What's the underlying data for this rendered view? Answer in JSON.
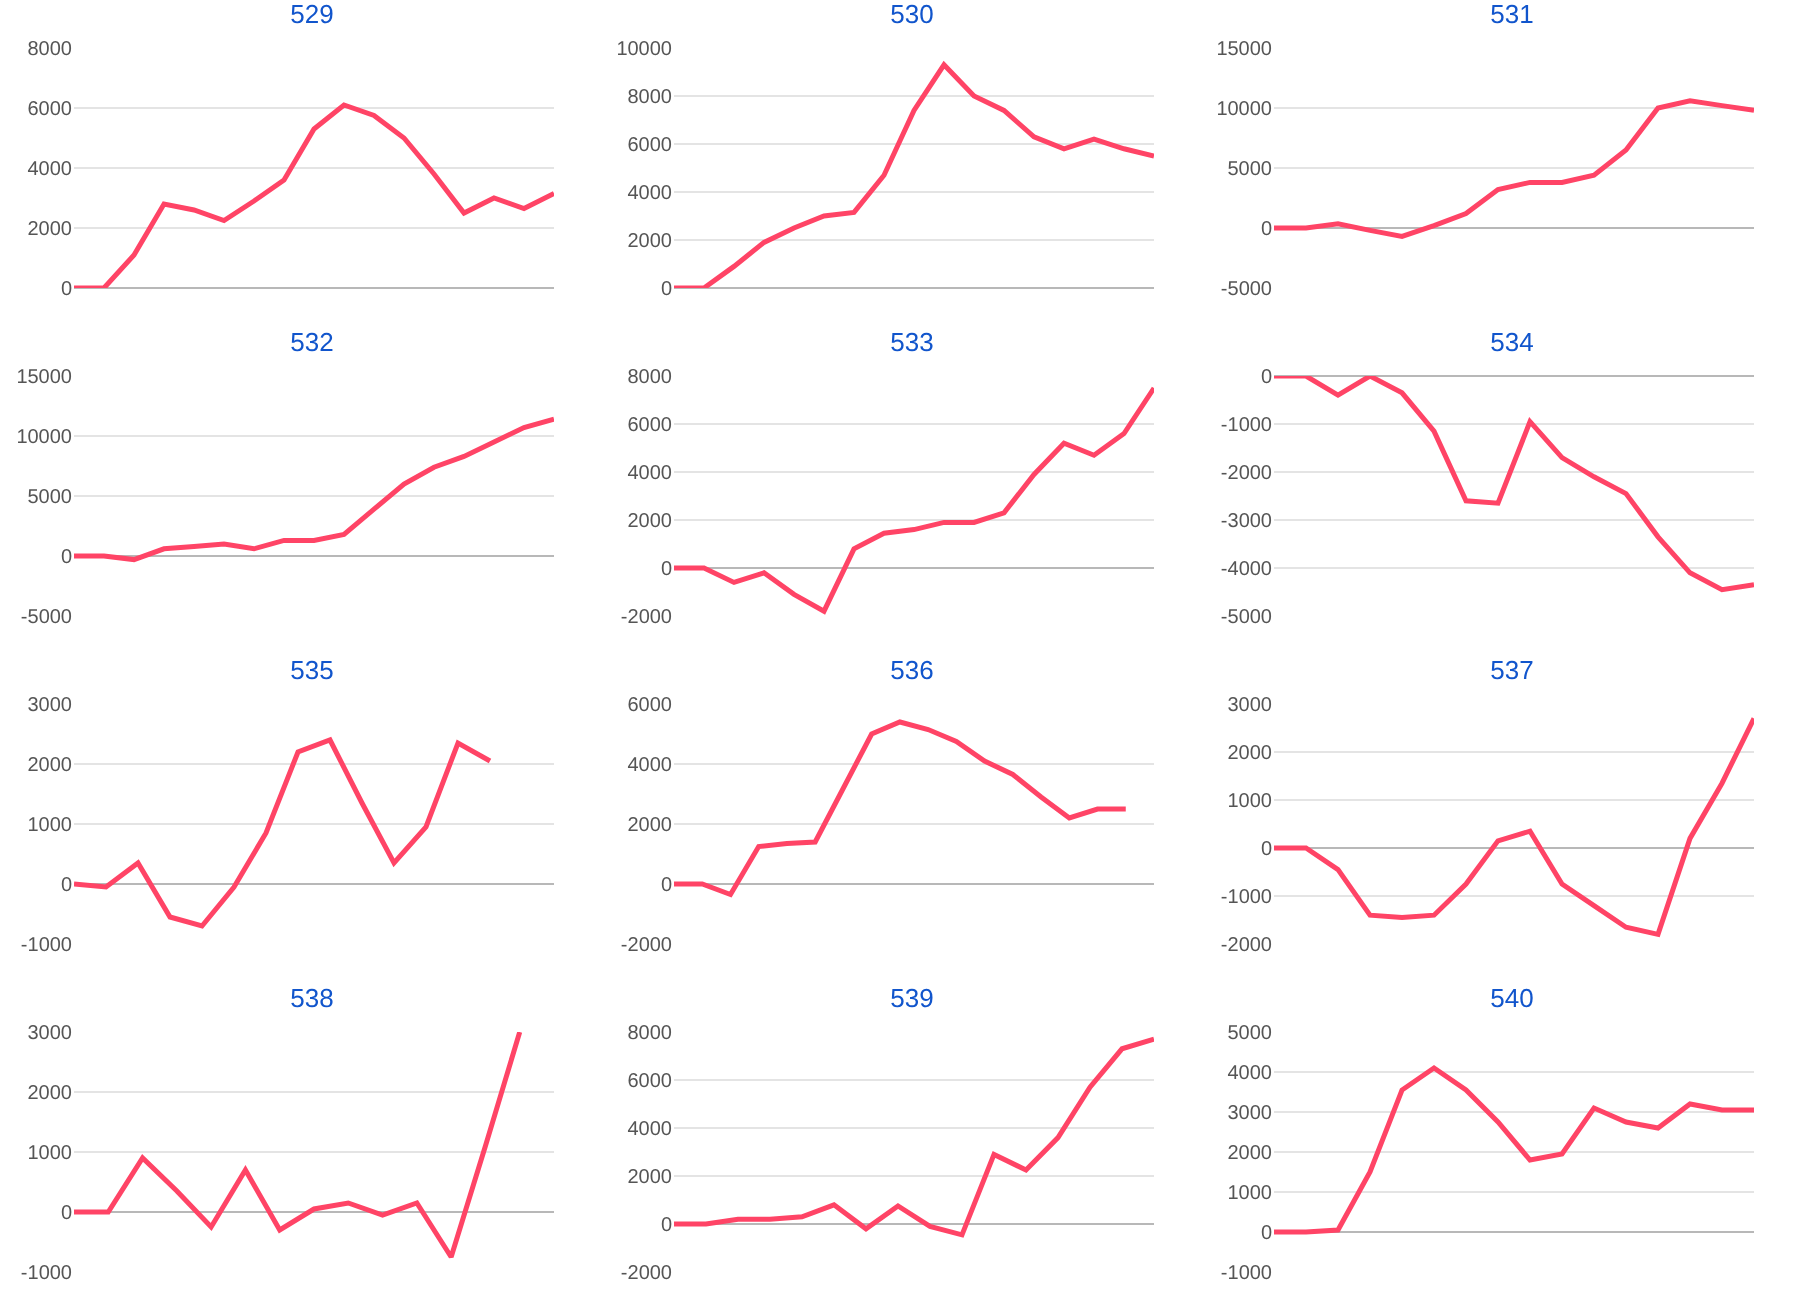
{
  "chart_data": [
    {
      "type": "line",
      "title": "529",
      "categories": [
        null,
        null,
        null,
        null,
        null,
        null,
        null,
        null,
        null,
        null,
        null,
        null,
        null,
        null,
        null,
        null,
        null
      ],
      "values": [
        0,
        0,
        1100,
        2800,
        2600,
        2250,
        2900,
        3600,
        5300,
        6100,
        5750,
        5000,
        3800,
        2500,
        3000,
        2650,
        3150
      ],
      "color": "#ff4466",
      "ylim": [
        0,
        8000
      ],
      "yticks": [
        0,
        2000,
        4000,
        6000,
        8000
      ],
      "grid": "y"
    },
    {
      "type": "line",
      "title": "530",
      "categories": [
        null,
        null,
        null,
        null,
        null,
        null,
        null,
        null,
        null,
        null,
        null,
        null,
        null,
        null,
        null,
        null,
        null
      ],
      "values": [
        0,
        0,
        900,
        1900,
        2500,
        3000,
        3150,
        4700,
        7400,
        9300,
        8000,
        7400,
        6300,
        5800,
        6200,
        5800,
        5500
      ],
      "color": "#ff4466",
      "ylim": [
        0,
        10000
      ],
      "yticks": [
        0,
        2000,
        4000,
        6000,
        8000,
        10000
      ],
      "grid": "y"
    },
    {
      "type": "line",
      "title": "531",
      "categories": [
        null,
        null,
        null,
        null,
        null,
        null,
        null,
        null,
        null,
        null,
        null,
        null,
        null,
        null,
        null,
        null
      ],
      "values": [
        0,
        0,
        350,
        -200,
        -700,
        200,
        1200,
        3200,
        3800,
        3800,
        4400,
        6500,
        10000,
        10600,
        10200,
        9800
      ],
      "color": "#ff4466",
      "ylim": [
        -5000,
        15000
      ],
      "yticks": [
        -5000,
        0,
        5000,
        10000,
        15000
      ],
      "grid": "y"
    },
    {
      "type": "line",
      "title": "532",
      "categories": [
        null,
        null,
        null,
        null,
        null,
        null,
        null,
        null,
        null,
        null,
        null,
        null,
        null,
        null,
        null,
        null,
        null
      ],
      "values": [
        0,
        0,
        -300,
        600,
        800,
        1000,
        600,
        1300,
        1300,
        1800,
        3900,
        6000,
        7400,
        8300,
        9500,
        10700,
        11400
      ],
      "color": "#ff4466",
      "ylim": [
        -5000,
        15000
      ],
      "yticks": [
        -5000,
        0,
        5000,
        10000,
        15000
      ],
      "grid": "y"
    },
    {
      "type": "line",
      "title": "533",
      "categories": [
        null,
        null,
        null,
        null,
        null,
        null,
        null,
        null,
        null,
        null,
        null,
        null,
        null,
        null,
        null,
        null,
        null
      ],
      "values": [
        0,
        0,
        -600,
        -200,
        -1100,
        -1800,
        800,
        1450,
        1600,
        1900,
        1900,
        2300,
        3900,
        5200,
        4700,
        5600,
        7500
      ],
      "color": "#ff4466",
      "ylim": [
        -2000,
        8000
      ],
      "yticks": [
        -2000,
        0,
        2000,
        4000,
        6000,
        8000
      ],
      "grid": "y"
    },
    {
      "type": "line",
      "title": "534",
      "categories": [
        null,
        null,
        null,
        null,
        null,
        null,
        null,
        null,
        null,
        null,
        null,
        null,
        null,
        null,
        null,
        null
      ],
      "values": [
        0,
        0,
        -400,
        0,
        -350,
        -1150,
        -2600,
        -2650,
        -950,
        -1700,
        -2100,
        -2450,
        -3350,
        -4100,
        -4450,
        -4350
      ],
      "color": "#ff4466",
      "ylim": [
        -5000,
        0
      ],
      "yticks": [
        -5000,
        -4000,
        -3000,
        -2000,
        -1000,
        0
      ],
      "grid": "y"
    },
    {
      "type": "line",
      "title": "535",
      "categories": [
        null,
        null,
        null,
        null,
        null,
        null,
        null,
        null,
        null,
        null,
        null,
        null,
        null,
        null,
        null,
        null
      ],
      "values": [
        0,
        -50,
        350,
        -550,
        -700,
        -50,
        850,
        2200,
        2400,
        1350,
        350,
        950,
        2350,
        2050,
        null,
        null
      ],
      "color": "#ff4466",
      "ylim": [
        -1000,
        3000
      ],
      "yticks": [
        -1000,
        0,
        1000,
        2000,
        3000
      ],
      "grid": "y"
    },
    {
      "type": "line",
      "title": "536",
      "categories": [
        null,
        null,
        null,
        null,
        null,
        null,
        null,
        null,
        null,
        null,
        null,
        null,
        null,
        null,
        null,
        null,
        null,
        null
      ],
      "values": [
        0,
        0,
        -350,
        1250,
        1350,
        1400,
        3200,
        5000,
        5400,
        5150,
        4750,
        4100,
        3650,
        2900,
        2200,
        2500,
        2500,
        null
      ],
      "color": "#ff4466",
      "ylim": [
        -2000,
        6000
      ],
      "yticks": [
        -2000,
        0,
        2000,
        4000,
        6000
      ],
      "grid": "y"
    },
    {
      "type": "line",
      "title": "537",
      "categories": [
        null,
        null,
        null,
        null,
        null,
        null,
        null,
        null,
        null,
        null,
        null,
        null,
        null,
        null,
        null,
        null
      ],
      "values": [
        0,
        0,
        -450,
        -1400,
        -1450,
        -1400,
        -750,
        150,
        350,
        -750,
        -1200,
        -1650,
        -1800,
        200,
        1350,
        2700
      ],
      "color": "#ff4466",
      "ylim": [
        -2000,
        3000
      ],
      "yticks": [
        -2000,
        -1000,
        0,
        1000,
        2000,
        3000
      ],
      "grid": "y"
    },
    {
      "type": "line",
      "title": "538",
      "categories": [
        null,
        null,
        null,
        null,
        null,
        null,
        null,
        null,
        null,
        null,
        null,
        null,
        null,
        null,
        null
      ],
      "values": [
        0,
        0,
        900,
        350,
        -250,
        700,
        -300,
        50,
        150,
        -50,
        150,
        -750,
        1100,
        3000,
        null
      ],
      "color": "#ff4466",
      "ylim": [
        -1000,
        3000
      ],
      "yticks": [
        -1000,
        0,
        1000,
        2000,
        3000
      ],
      "grid": "y"
    },
    {
      "type": "line",
      "title": "539",
      "categories": [
        null,
        null,
        null,
        null,
        null,
        null,
        null,
        null,
        null,
        null,
        null,
        null,
        null,
        null,
        null,
        null
      ],
      "values": [
        0,
        0,
        200,
        200,
        300,
        800,
        -200,
        750,
        -100,
        -450,
        2900,
        2250,
        3600,
        5700,
        7300,
        7700
      ],
      "color": "#ff4466",
      "ylim": [
        -2000,
        8000
      ],
      "yticks": [
        -2000,
        0,
        2000,
        4000,
        6000,
        8000
      ],
      "grid": "y"
    },
    {
      "type": "line",
      "title": "540",
      "categories": [
        null,
        null,
        null,
        null,
        null,
        null,
        null,
        null,
        null,
        null,
        null,
        null,
        null,
        null,
        null,
        null
      ],
      "values": [
        0,
        0,
        50,
        1500,
        3550,
        4100,
        3550,
        2750,
        1800,
        1950,
        3100,
        2750,
        2600,
        3200,
        3050,
        3050
      ],
      "color": "#ff4466",
      "ylim": [
        -1000,
        5000
      ],
      "yticks": [
        -1000,
        0,
        1000,
        2000,
        3000,
        4000,
        5000
      ],
      "grid": "y"
    }
  ]
}
